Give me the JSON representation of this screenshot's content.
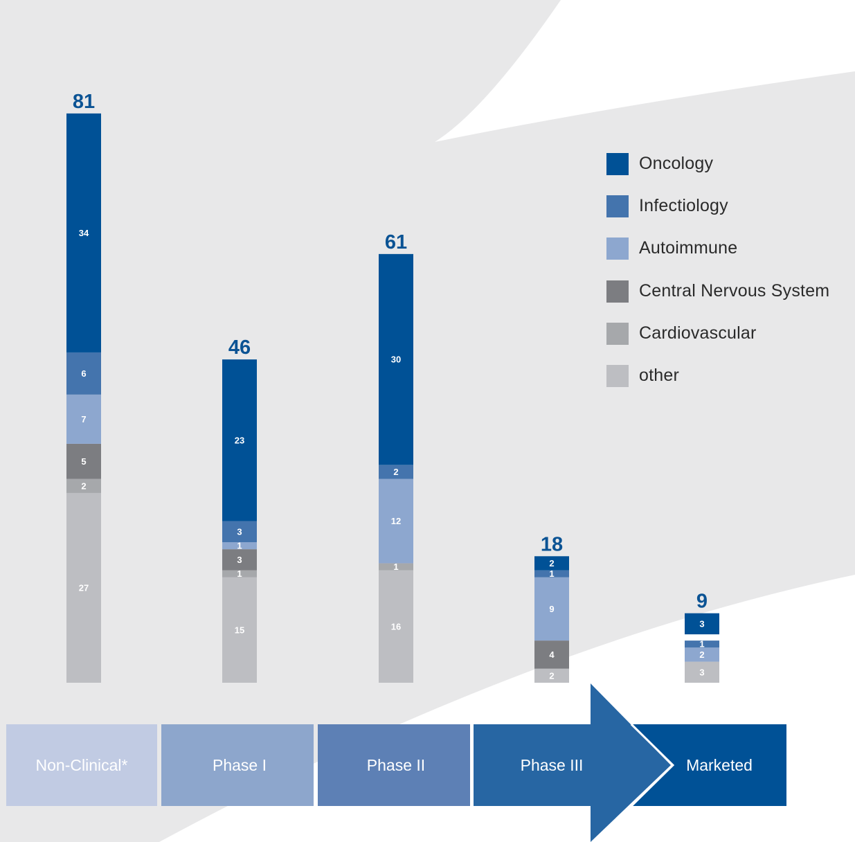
{
  "colors": {
    "background_swoosh": "#e8e8e9",
    "total_label": "#0b5394"
  },
  "chart_data": {
    "type": "bar",
    "stacked": true,
    "categories": [
      "Non-Clinical*",
      "Phase I",
      "Phase II",
      "Phase III",
      "Marketed"
    ],
    "totals": [
      81,
      46,
      61,
      18,
      9
    ],
    "series": [
      {
        "name": "Oncology",
        "color": "#005196",
        "values": [
          34,
          23,
          30,
          2,
          3
        ]
      },
      {
        "name": "Infectiology",
        "color": "#4474ad",
        "values": [
          6,
          3,
          2,
          1,
          1
        ]
      },
      {
        "name": "Autoimmune",
        "color": "#8da7cf",
        "values": [
          7,
          1,
          12,
          9,
          2
        ]
      },
      {
        "name": "Central Nervous System",
        "color": "#7c7d81",
        "values": [
          5,
          3,
          0,
          4,
          0
        ]
      },
      {
        "name": "Cardiovascular",
        "color": "#a6a8ab",
        "values": [
          2,
          1,
          1,
          0,
          0
        ]
      },
      {
        "name": "other",
        "color": "#bdbec2",
        "values": [
          27,
          15,
          16,
          2,
          3
        ]
      }
    ],
    "legend_position": "right",
    "axes_visible": false,
    "grid": false
  },
  "pipeline_stages": [
    {
      "label": "Non-Clinical*",
      "color": "#c1cbe3"
    },
    {
      "label": "Phase I",
      "color": "#8da6cc"
    },
    {
      "label": "Phase II",
      "color": "#5d80b5"
    },
    {
      "label": "Phase III",
      "color": "#2766a3"
    },
    {
      "label": "Marketed",
      "color": "#005196"
    }
  ]
}
